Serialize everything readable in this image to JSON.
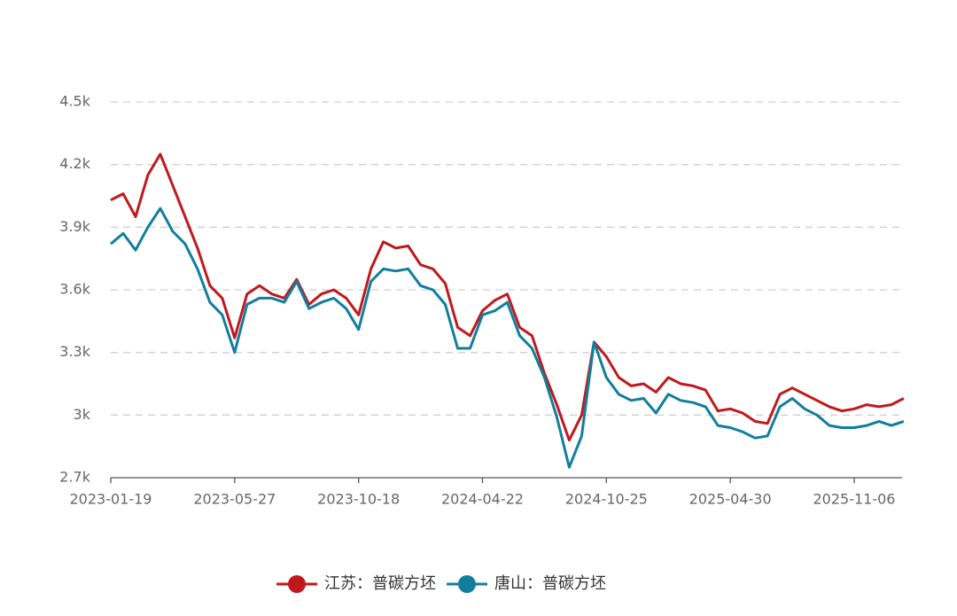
{
  "chart_data": {
    "type": "line",
    "categories": [
      "2023-01-19",
      null,
      null,
      null,
      null,
      null,
      null,
      null,
      null,
      null,
      "2023-05-27",
      null,
      null,
      null,
      null,
      null,
      null,
      null,
      null,
      null,
      "2023-10-18",
      null,
      null,
      null,
      null,
      null,
      null,
      null,
      null,
      null,
      "2024-04-22",
      null,
      null,
      null,
      null,
      null,
      null,
      null,
      null,
      null,
      "2024-10-25",
      null,
      null,
      null,
      null,
      null,
      null,
      null,
      null,
      null,
      "2025-04-30",
      null,
      null,
      null,
      null,
      null,
      null,
      null,
      null,
      null,
      "2025-11-06",
      null,
      null,
      null,
      null
    ],
    "series": [
      {
        "name": "江苏：普碳方坯",
        "color": "#c0191d",
        "values": [
          4030,
          4060,
          3950,
          4150,
          4250,
          4100,
          3950,
          3800,
          3620,
          3560,
          3370,
          3580,
          3620,
          3580,
          3560,
          3650,
          3530,
          3580,
          3600,
          3560,
          3480,
          3700,
          3830,
          3800,
          3810,
          3720,
          3700,
          3630,
          3420,
          3380,
          3500,
          3550,
          3580,
          3420,
          3380,
          3200,
          3050,
          2880,
          3000,
          3350,
          3280,
          3180,
          3140,
          3150,
          3110,
          3180,
          3150,
          3140,
          3120,
          3020,
          3030,
          3010,
          2970,
          2960,
          3100,
          3130,
          3100,
          3070,
          3040,
          3020,
          3030,
          3050,
          3040,
          3050,
          3080
        ]
      },
      {
        "name": "唐山：普碳方坯",
        "color": "#117e9e",
        "values": [
          3820,
          3870,
          3790,
          3900,
          3990,
          3880,
          3820,
          3700,
          3540,
          3480,
          3300,
          3530,
          3560,
          3560,
          3540,
          3640,
          3510,
          3540,
          3560,
          3510,
          3410,
          3640,
          3700,
          3690,
          3700,
          3620,
          3600,
          3530,
          3320,
          3320,
          3480,
          3500,
          3540,
          3380,
          3320,
          3180,
          2990,
          2750,
          2900,
          3350,
          3180,
          3100,
          3070,
          3080,
          3010,
          3100,
          3070,
          3060,
          3040,
          2950,
          2940,
          2920,
          2890,
          2900,
          3040,
          3080,
          3030,
          3000,
          2950,
          2940,
          2940,
          2950,
          2970,
          2950,
          2970
        ]
      }
    ],
    "ylim": [
      2700,
      4500
    ],
    "yticks": [
      {
        "value": 2700,
        "label": "2.7k"
      },
      {
        "value": 3000,
        "label": "3k"
      },
      {
        "value": 3300,
        "label": "3.3k"
      },
      {
        "value": 3600,
        "label": "3.6k"
      },
      {
        "value": 3900,
        "label": "3.9k"
      },
      {
        "value": 4200,
        "label": "4.2k"
      },
      {
        "value": 4500,
        "label": "4.5k"
      }
    ],
    "grid": true,
    "legend": "bottom"
  }
}
